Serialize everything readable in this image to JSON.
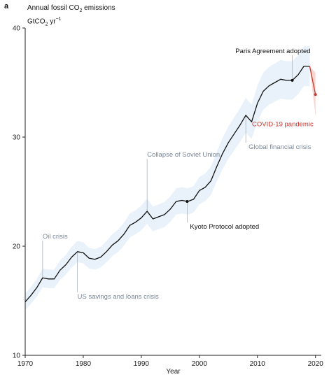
{
  "panel_label": "a",
  "y_title_line1": "Annual fossil CO",
  "y_title_line1_sub": "2",
  "y_title_line1_tail": " emissions",
  "y_title_line2": "GtCO",
  "y_title_line2_sub": "2",
  "y_title_line2_unit": " yr",
  "y_title_line2_sup": "−1",
  "colors": {
    "line": "#111111",
    "band": "#dbe9f6",
    "projection": "#c8372d",
    "projection_band": "#f6c9c2",
    "annotation_grey": "#7a8797",
    "annotation_dark": "#111111",
    "annotation_red": "#c8372d"
  },
  "chart_data": {
    "type": "line",
    "xlabel": "Year",
    "ylabel": "Annual fossil CO2 emissions GtCO2 yr−1",
    "xlim": [
      1970,
      2021
    ],
    "ylim": [
      10,
      40
    ],
    "x_ticks": [
      "1970",
      "1980",
      "1990",
      "2000",
      "2010",
      "2020"
    ],
    "y_ticks": [
      "10",
      "20",
      "30",
      "40"
    ],
    "grid": false,
    "series": [
      {
        "x": [
          1970,
          1971,
          1972,
          1973,
          1974,
          1975,
          1976,
          1977,
          1978,
          1979,
          1980,
          1981,
          1982,
          1983,
          1984,
          1985,
          1986,
          1987,
          1988,
          1989,
          1990,
          1991,
          1992,
          1993,
          1994,
          1995,
          1996,
          1997,
          1998,
          1999,
          2000,
          2001,
          2002,
          2003,
          2004,
          2005,
          2006,
          2007,
          2008,
          2009,
          2010,
          2011,
          2012,
          2013,
          2014,
          2015,
          2016,
          2017,
          2018,
          2019
        ],
        "values": [
          14.9,
          15.5,
          16.2,
          17.1,
          17.0,
          17.0,
          17.8,
          18.3,
          19.0,
          19.5,
          19.4,
          18.9,
          18.8,
          19.0,
          19.5,
          20.1,
          20.5,
          21.1,
          21.9,
          22.2,
          22.6,
          23.2,
          22.5,
          22.7,
          22.9,
          23.4,
          24.1,
          24.2,
          24.1,
          24.3,
          25.1,
          25.4,
          26.0,
          27.3,
          28.5,
          29.5,
          30.3,
          31.1,
          32.0,
          31.4,
          33.1,
          34.2,
          34.7,
          35.0,
          35.3,
          35.2,
          35.2,
          35.7,
          36.5,
          36.5
        ]
      },
      {
        "x": [
          2019,
          2020
        ],
        "values": [
          36.5,
          33.9
        ]
      }
    ],
    "annotations": [
      {
        "text": "Oil crisis",
        "x": 1973,
        "y": 17.1,
        "label_y": 20.7,
        "style": "grey"
      },
      {
        "text": "US savings and loans crisis",
        "x": 1979,
        "y": 19.5,
        "label_y": 15.2,
        "style": "grey"
      },
      {
        "text": "Collapse of Soviet Union",
        "x": 1991,
        "y": 23.2,
        "label_y": 28.2,
        "style": "grey"
      },
      {
        "text": "Kyoto Protocol adopted",
        "x": 1997.9,
        "y": 24.1,
        "label_y": 21.6,
        "style": "dark"
      },
      {
        "text": "Global financial crisis",
        "x": 2008,
        "y": 32.0,
        "label_y": 28.9,
        "style": "grey"
      },
      {
        "text": "Paris Agreement adopted",
        "x": 2016,
        "y": 35.2,
        "label_y": 37.7,
        "style": "dark"
      },
      {
        "text": "COVID-19 pandemic",
        "x": 2020,
        "y": 33.9,
        "label_y": 31.0,
        "style": "red"
      }
    ]
  }
}
